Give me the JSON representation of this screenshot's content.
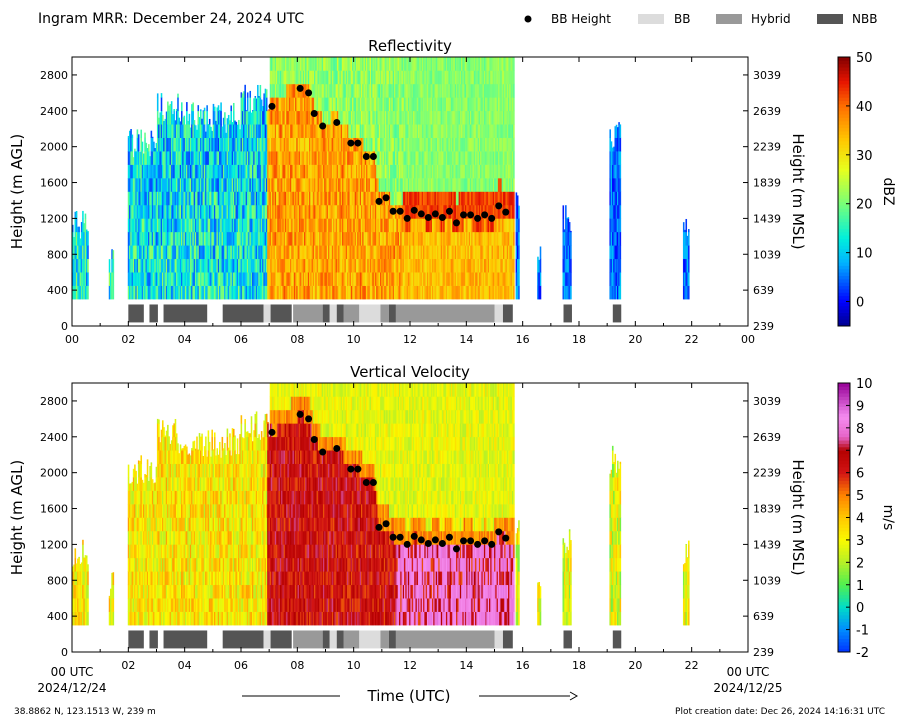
{
  "header": {
    "title": "Ingram MRR:  December 24, 2024 UTC",
    "legend": [
      {
        "label": "BB Height",
        "kind": "marker",
        "color": "#000000"
      },
      {
        "label": "BB",
        "kind": "swatch",
        "color": "#dcdcdc"
      },
      {
        "label": "Hybrid",
        "kind": "swatch",
        "color": "#999999"
      },
      {
        "label": "NBB",
        "kind": "swatch",
        "color": "#555555"
      }
    ]
  },
  "footer": {
    "location": "38.8862 N, 123.1513 W, 239 m",
    "creation": "Plot creation date: Dec 26, 2024 14:16:31 UTC",
    "xlabel": "Time (UTC)",
    "start_tick": "00 UTC",
    "start_date": "2024/12/24",
    "end_tick": "00 UTC",
    "end_date": "2024/12/25"
  },
  "chart_data": [
    {
      "type": "heatmap",
      "title": "Reflectivity",
      "ylabel": "Height (m AGL)",
      "ylabel_right": "Height (m MSL)",
      "colorbar_label": "dBZ",
      "colorbar_ticks": [
        "50",
        "40",
        "30",
        "20",
        "10",
        "0"
      ],
      "colorbar_range": [
        -5,
        50
      ],
      "xlim": [
        0,
        24
      ],
      "ylim": [
        0,
        3000
      ],
      "x_ticks": [
        "00",
        "02",
        "04",
        "06",
        "08",
        "10",
        "12",
        "14",
        "16",
        "18",
        "20",
        "22",
        "00"
      ],
      "y_ticks": [
        "0",
        "400",
        "800",
        "1200",
        "1600",
        "2000",
        "2400",
        "2800"
      ],
      "y_ticks_right": [
        "239",
        "639",
        "1039",
        "1439",
        "1839",
        "2239",
        "2639",
        "3039"
      ]
    },
    {
      "type": "heatmap",
      "title": "Vertical Velocity",
      "ylabel": "Height (m AGL)",
      "ylabel_right": "Height (m MSL)",
      "colorbar_label": "m/s",
      "colorbar_ticks": [
        "10",
        "9",
        "8",
        "7",
        "6",
        "5",
        "4",
        "3",
        "2",
        "1",
        "0",
        "-1",
        "-2"
      ],
      "colorbar_range": [
        -2,
        10
      ],
      "xlim": [
        0,
        24
      ],
      "ylim": [
        0,
        3000
      ],
      "x_ticks": [
        "",
        "02",
        "04",
        "06",
        "08",
        "10",
        "12",
        "14",
        "16",
        "18",
        "20",
        "22",
        ""
      ],
      "y_ticks": [
        "0",
        "400",
        "800",
        "1200",
        "1600",
        "2000",
        "2400",
        "2800"
      ],
      "y_ticks_right": [
        "239",
        "639",
        "1039",
        "1439",
        "1839",
        "2239",
        "2639",
        "3039"
      ]
    }
  ],
  "bb_height_points": [
    {
      "t": 7.1,
      "h": 2450
    },
    {
      "t": 8.1,
      "h": 2650
    },
    {
      "t": 8.4,
      "h": 2600
    },
    {
      "t": 8.6,
      "h": 2370
    },
    {
      "t": 8.9,
      "h": 2230
    },
    {
      "t": 9.4,
      "h": 2270
    },
    {
      "t": 9.9,
      "h": 2040
    },
    {
      "t": 10.15,
      "h": 2040
    },
    {
      "t": 10.45,
      "h": 1890
    },
    {
      "t": 10.7,
      "h": 1890
    },
    {
      "t": 10.9,
      "h": 1390
    },
    {
      "t": 11.15,
      "h": 1430
    },
    {
      "t": 11.4,
      "h": 1280
    },
    {
      "t": 11.65,
      "h": 1280
    },
    {
      "t": 11.9,
      "h": 1200
    },
    {
      "t": 12.15,
      "h": 1290
    },
    {
      "t": 12.4,
      "h": 1250
    },
    {
      "t": 12.65,
      "h": 1210
    },
    {
      "t": 12.9,
      "h": 1250
    },
    {
      "t": 13.15,
      "h": 1210
    },
    {
      "t": 13.4,
      "h": 1280
    },
    {
      "t": 13.65,
      "h": 1150
    },
    {
      "t": 13.9,
      "h": 1240
    },
    {
      "t": 14.15,
      "h": 1240
    },
    {
      "t": 14.4,
      "h": 1200
    },
    {
      "t": 14.65,
      "h": 1240
    },
    {
      "t": 14.9,
      "h": 1200
    },
    {
      "t": 15.15,
      "h": 1340
    },
    {
      "t": 15.4,
      "h": 1270
    }
  ],
  "bb_class_segments": [
    {
      "start": 2.0,
      "end": 2.55,
      "class": "NBB"
    },
    {
      "start": 2.75,
      "end": 3.05,
      "class": "NBB"
    },
    {
      "start": 3.25,
      "end": 4.8,
      "class": "NBB"
    },
    {
      "start": 5.35,
      "end": 6.8,
      "class": "NBB"
    },
    {
      "start": 6.8,
      "end": 7.05,
      "class": "BB"
    },
    {
      "start": 7.05,
      "end": 7.8,
      "class": "NBB"
    },
    {
      "start": 7.85,
      "end": 8.9,
      "class": "Hybrid"
    },
    {
      "start": 8.9,
      "end": 9.15,
      "class": "NBB"
    },
    {
      "start": 9.15,
      "end": 9.4,
      "class": "BB"
    },
    {
      "start": 9.4,
      "end": 9.65,
      "class": "NBB"
    },
    {
      "start": 9.65,
      "end": 10.2,
      "class": "Hybrid"
    },
    {
      "start": 10.2,
      "end": 10.95,
      "class": "BB"
    },
    {
      "start": 10.95,
      "end": 11.25,
      "class": "Hybrid"
    },
    {
      "start": 11.25,
      "end": 11.5,
      "class": "NBB"
    },
    {
      "start": 11.5,
      "end": 15.0,
      "class": "Hybrid"
    },
    {
      "start": 15.0,
      "end": 15.3,
      "class": "BB"
    },
    {
      "start": 15.3,
      "end": 15.65,
      "class": "NBB"
    },
    {
      "start": 17.45,
      "end": 17.75,
      "class": "NBB"
    },
    {
      "start": 19.2,
      "end": 19.5,
      "class": "NBB"
    }
  ],
  "colors": {
    "BB": "#dcdcdc",
    "Hybrid": "#999999",
    "NBB": "#555555"
  }
}
